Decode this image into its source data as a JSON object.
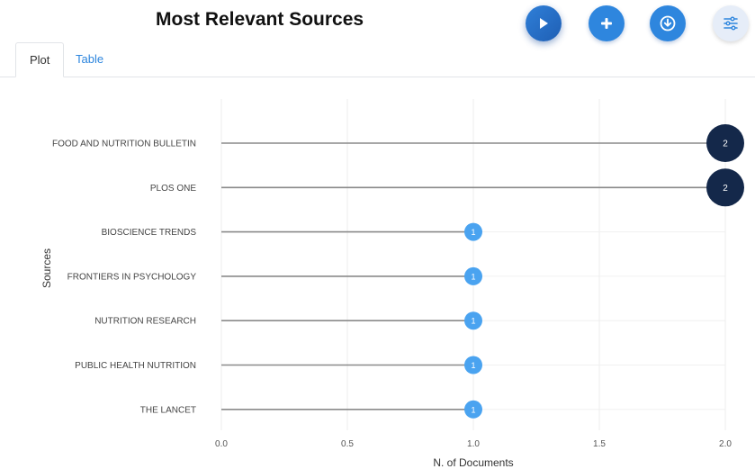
{
  "header": {
    "title": "Most Relevant Sources"
  },
  "toolbar": {
    "buttons": [
      {
        "icon": "play-icon"
      },
      {
        "icon": "plus-icon"
      },
      {
        "icon": "download-icon"
      },
      {
        "icon": "sliders-icon"
      }
    ]
  },
  "tabs": [
    {
      "label": "Plot",
      "active": true
    },
    {
      "label": "Table",
      "active": false
    }
  ],
  "colors": {
    "accent": "#2e86de",
    "dot_high": "#14284a",
    "dot_low": "#4aa3f0",
    "stem": "#8a8a8a"
  },
  "chart_data": {
    "type": "lollipop",
    "title": "",
    "xlabel": "N. of Documents",
    "ylabel": "Sources",
    "categories": [
      "FOOD AND NUTRITION BULLETIN",
      "PLOS ONE",
      "BIOSCIENCE TRENDS",
      "FRONTIERS IN PSYCHOLOGY",
      "NUTRITION RESEARCH",
      "PUBLIC HEALTH NUTRITION",
      "THE LANCET"
    ],
    "values": [
      2,
      2,
      1,
      1,
      1,
      1,
      1
    ],
    "xlim": [
      0,
      2
    ],
    "xticks": [
      "0.0",
      "0.5",
      "1.0",
      "1.5",
      "2.0"
    ],
    "grid": true
  }
}
